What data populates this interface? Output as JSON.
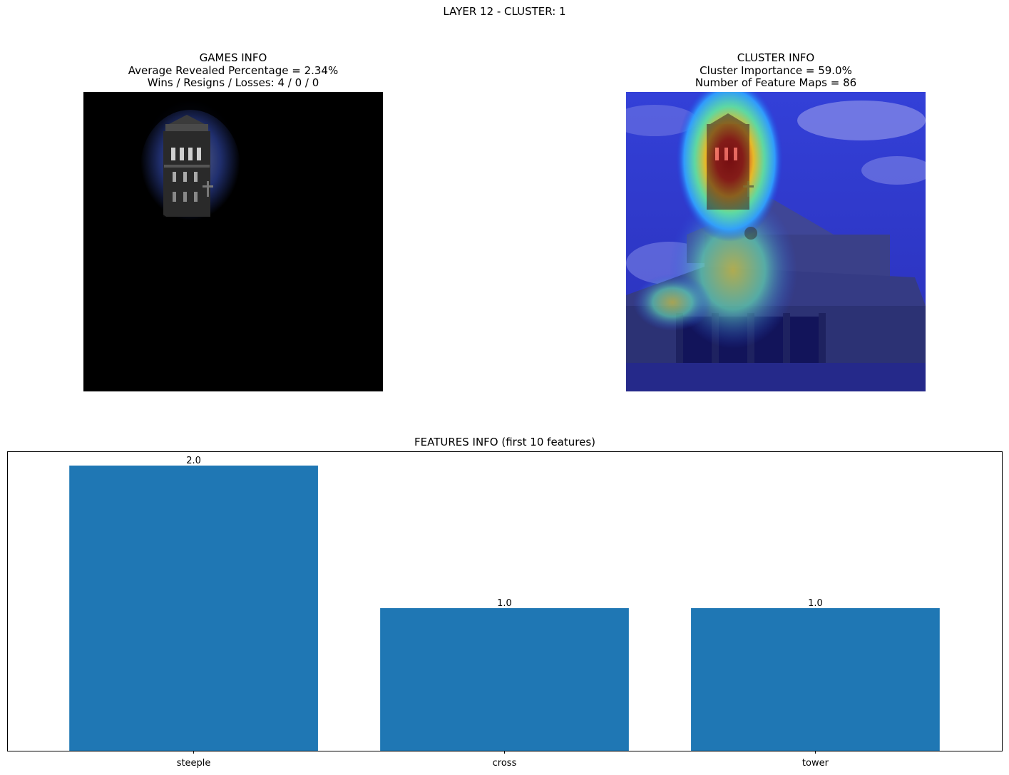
{
  "figure": {
    "suptitle": "LAYER 12 - CLUSTER: 1"
  },
  "games_info": {
    "heading": "GAMES INFO",
    "revealed_line": "Average Revealed Percentage = 2.34%",
    "record_line": "Wins / Resigns / Losses: 4 / 0 / 0",
    "image_kind": "masked photo: only the bell tower region is revealed, rest black"
  },
  "cluster_info": {
    "heading": "CLUSTER INFO",
    "importance_line": "Cluster Importance = 59.0%",
    "feature_maps_line": "Number of Feature Maps = 86",
    "image_kind": "church photo with jet colormap heatmap overlay, hottest on bell tower"
  },
  "chart_data": {
    "type": "bar",
    "title": "FEATURES INFO (first 10 features)",
    "categories": [
      "steeple",
      "cross",
      "tower"
    ],
    "values": [
      2.0,
      1.0,
      1.0
    ],
    "data_labels": [
      "2.0",
      "1.0",
      "1.0"
    ],
    "xlabel": "",
    "ylabel": "",
    "ylim": [
      0,
      2.1
    ],
    "y_ticks_visible": false,
    "grid": false,
    "bar_color": "#1f77b4"
  }
}
